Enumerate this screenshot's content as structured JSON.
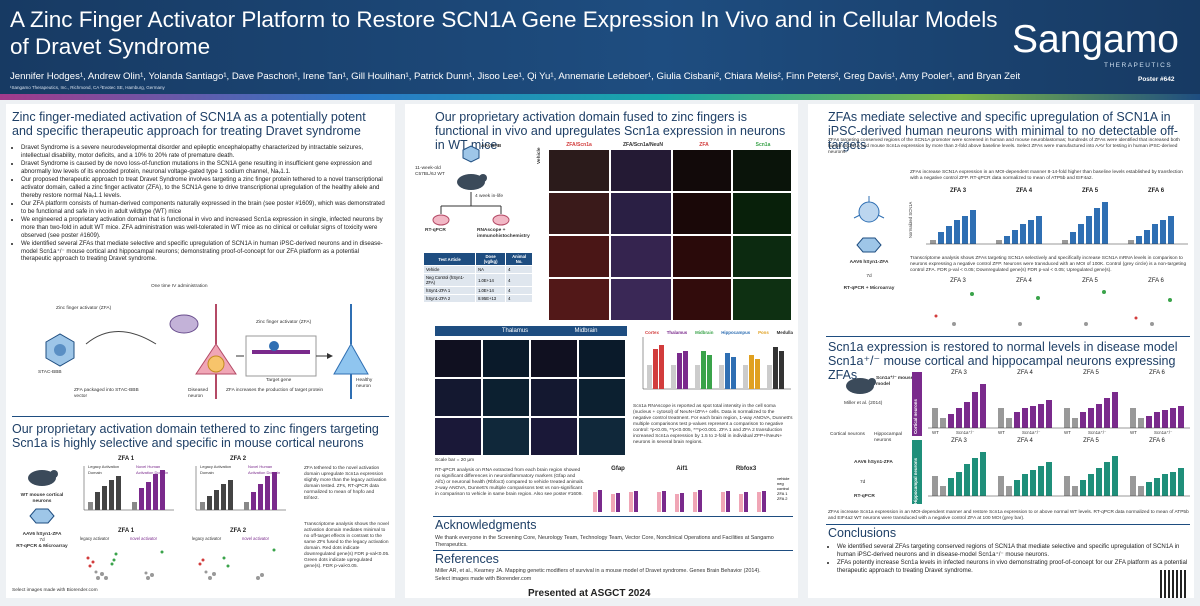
{
  "header": {
    "title": "A Zinc Finger Activator Platform to Restore SCN1A Gene Expression In Vivo and in Cellular Models of Dravet Syndrome",
    "authors": "Jennifer Hodges¹, Andrew Olin¹, Yolanda Santiago¹, Dave Paschon¹, Irene Tan¹, Gill Houlihan¹, Patrick Dunn¹, Jisoo Lee¹, Qi Yu¹, Annemarie Ledeboer¹, Giulia Cisbani², Chiara Melis², Finn Peters², Greg Davis¹, Amy Pooler¹, and Bryan Zeitler¹",
    "affiliations": "¹Sangamo Therapeutics, Inc., Richmond, CA   ²Evotec SE, Hamburg, Germany",
    "logo": "Sangamo",
    "logo_sub": "THERAPEUTICS",
    "poster_number": "Poster #642"
  },
  "col1": {
    "s1_title": "Zinc finger-mediated activation of SCN1A as a potentially potent and specific therapeutic approach for treating Dravet syndrome",
    "bullets": [
      "Dravet Syndrome is a severe neurodevelopmental disorder and epileptic encephalopathy characterized by intractable seizures, intellectual disability, motor deficits, and a 10% to 20% rate of premature death.",
      "Dravet Syndrome is caused by de novo loss-of-function mutations in the SCN1A gene resulting in insufficient gene expression and abnormally low levels of its encoded protein, neuronal voltage-gated type 1 sodium channel, Naᵥ1.1.",
      "Our proposed therapeutic approach to treat Dravet Syndrome involves targeting a zinc finger protein tethered to a novel transcriptional activator domain, called a zinc finger activator (ZFA), to the SCN1A gene to drive transcriptional upregulation of the healthy allele and thereby restore normal Naᵥ1.1 levels.",
      "Our ZFA platform consists of human-derived components naturally expressed in the brain (see poster #1609), which was demonstrated to be functional and safe in vivo in adult wildtype (WT) mice",
      "We engineered a proprietary activation domain that is functional in vivo and increased Scn1a expression in single, infected neurons by more than two-fold in adult WT mice. ZFA administration was well-tolerated in WT mice as no clinical or cellular signs of toxicity were observed (see poster #1609).",
      "We identified several ZFAs that mediate selective and specific upregulation of SCN1A in human iPSC-derived neurons and in disease-model Scn1a⁺/⁻ mouse cortical and hippocampal neurons; demonstrating proof-of-concept for our ZFA platform as a potential therapeutic approach to treating Dravet syndrome."
    ],
    "diagram": {
      "one_time": "One time IV administration",
      "zf_activator": "Zinc finger activator (ZFA)",
      "stac": "STAC-BBB",
      "zfa_packaged": "ZFA packaged into STAC-BBB vector",
      "zfa_label": "Zinc finger activator (ZFA)",
      "target_gene": "Target gene",
      "zfa_increase": "ZFA increases the production of target protein",
      "diseased": "Diseased neuron",
      "healthy": "Healthy neuron"
    },
    "s2_title": "Our proprietary activation domain tethered to zinc fingers targeting Scn1a is highly selective and specific in mouse cortical neurons",
    "s2_flow": [
      "WT mouse cortical neurons",
      "AAV6 hSyn1-ZFA",
      "7d",
      "RT-qPCR & Microarray"
    ],
    "s2_charts": [
      {
        "title": "ZFA 1",
        "left": "Legacy Activation Domain",
        "right": "Novel Human Activation Domain"
      },
      {
        "title": "ZFA 2",
        "left": "Legacy Activation Domain",
        "right": "Novel Human Activation Domain"
      }
    ],
    "s2_ylabel": "Normalized Scn1a",
    "s2_text1": "ZFA tethered to the novel activation domain upregulate Scn1a expression slightly more than the legacy activation domain tested. ZFs, RT-qPCR data normalized to mean of hnpfo and Eif4e2.",
    "s2_text2": "Transcriptome analysis shows the novel activation domain mediates minimal to no off-target effects in contrast to the same ZFs fused to the legacy activation domain. Red dots indicate downregulated gene(s) FDR p-val<0.05. Green dots indicate upregulated gene(s). FDR p-val<0.05.",
    "s2_volcano": [
      {
        "title": "ZFA 1",
        "left": "legacy activator",
        "right": "novel activator"
      },
      {
        "title": "ZFA 2",
        "left": "legacy activator",
        "right": "novel activator"
      }
    ],
    "footnote": "Select images made with Biorender.com"
  },
  "col2": {
    "s1_title": "Our proprietary activation domain fused to zinc fingers is functional in vivo and upregulates Scn1a expression in neurons in WT mice",
    "flow": {
      "aav": "AAV.9HB",
      "mouse": "11-week-old C57BL/6J WT",
      "weeks": "4 week in-life",
      "rtqpcr": "RT-qPCR",
      "rnascope": "RNAscope + immunohistochemistry"
    },
    "table": {
      "headers": [
        "Test Article",
        "Dose (vg/kg)",
        "Animal No."
      ],
      "rows": [
        [
          "Vehicle",
          "NA",
          "4"
        ],
        [
          "Neg Control (hSyn1-ZFA)",
          "1.0E+14",
          "4"
        ],
        [
          "hSyn1-ZFA 1",
          "1.0E+14",
          "4"
        ],
        [
          "hSyn1-ZFA 2",
          "8.95E+13",
          "4"
        ]
      ]
    },
    "micro_headers": [
      "ZFA/Scn1a",
      "ZFA/Scn1a/NeuN",
      "ZFA",
      "Scn1a"
    ],
    "micro_rows": [
      "Vehicle",
      "Neg control",
      "ZFA 1",
      "ZFA 2"
    ],
    "regions": [
      "Thalamus",
      "Midbrain"
    ],
    "region_sub": [
      "ZFA/Scn1a",
      "NeuN",
      "ZFA",
      "Scn1a"
    ],
    "scale": "Scale bar = 20 µm",
    "bar_regions": [
      "Cortex",
      "Thalamus",
      "Midbrain",
      "Hippocampus",
      "Pons",
      "Medulla"
    ],
    "rna_text": "Scn1a RNAscope is reported as spot total intensity in the cell soma (nucleus + cytosol) of NeuN+/ZFA+ cells. Data is normalized to the negative control treatment. For each brain region, 1-way ANOVA, Dunnett's multiple comparisons test p-values represent a comparison to negative control: *p<0.05, **p<0.005, ***p<0.001. ZFA 1 and ZFA 2 transduction increased Scn1a expression by 1.5 to 2-fold in individual ZFP+/NeuN+ neurons in several brain regions.",
    "qpcr_text": "RT-qPCR analysis on RNA extracted from each brain region showed no significant differences in neuroinflammatory markers (Gfap and Aif1) or neuronal health (Rbfox3) compared to vehicle treated animals. 2-way ANOVA, Dunnett's multiple comparisons test vs non-significant in comparison to vehicle in same brain region. Also see poster #1609.",
    "qpcr_charts": [
      "Gfap",
      "Aif1",
      "Rbfox3"
    ],
    "qpcr_legend": [
      "vehicle",
      "neg control",
      "ZFA 1",
      "ZFA 2"
    ],
    "ack_title": "Acknowledgments",
    "ack_text": "We thank everyone in the Screening Core, Neurology Team, Technology Team, Vector Core, Nonclinical Operations and Facilities at Sangamo Therapeutics.",
    "ref_title": "References",
    "ref_text": "Miller AR, et al., Kearney JA. Mapping genetic modifiers of survival in a mouse model of Dravet syndrome. Genes Brain Behavior (2014).",
    "ref_note": "Select images made with Biorender.com"
  },
  "col3": {
    "s1_title": "ZFAs mediate selective and specific upregulation of SCN1A in iPSC-derived human neurons with minimal to no detectable off-targets",
    "s1_intro": "ZFAs targeting conserved regions of the SCN1A promoter were screened in human and mouse neuroblastomas; hundreds of ZFAs were identified that increased both human SCN1A and mouse Scn1a expression by more than 2-fold above baseline levels. Select ZFAs were manufactured into AAV for testing in human iPSC-derived neurons.",
    "s1_chart_caption": "ZFAs increase SCN1A expression in an MOI-dependent manner 8-14-fold higher than baseline levels established by transfection with a negative control ZFP. RT-qPCR data normalized to mean of ATP5b and EIF4a2.",
    "zfa_titles": [
      "ZFA 3",
      "ZFA 4",
      "ZFA 5",
      "ZFA 6"
    ],
    "ylabel": "Normalized SCN1A",
    "flow": [
      "iPSC-derived human neurons",
      "AAV6 hSyn1-ZFA",
      "7d",
      "RT-qPCR + Microarray"
    ],
    "s1_volcano_caption": "Transcriptome analysis shows ZFAs targeting SCN1A selectively and specifically increase SCN1A mRNA levels in comparison to neurons expressing a negative control ZFP. Neurons were transduced with an MOI of 100K. Control (grey circle) is a non-targeting control ZFA. FDR p-val < 0.05; Downregulated gene(s) FDR p-val < 0.05; Upregulated gene(s).",
    "s2_title": "Scn1a expression is restored to normal levels in disease model Scn1a⁺/⁻ mouse cortical and hippocampal neurons expressing ZFAs",
    "s2_flow": [
      "Scn1a⁺/⁻ mouse model",
      "Miller et al. (2014)",
      "Cortical neurons",
      "Hippocampal neurons",
      "AAV6 hSyn1-ZFA",
      "7d",
      "RT-qPCR"
    ],
    "row_labels": [
      "Cortical neurons",
      "Hippocampal neurons"
    ],
    "x_groups": [
      "WT",
      "Scn1a⁺/⁻"
    ],
    "s2_caption": "ZFAs increase Scn1a expression in an MOI-dependent manner and restore Scn1a expression to or above normal WT levels. RT-qPCR data normalized to mean of ATP5b and EIF4a2 WT neurons were transduced with a negative control ZFA at 100 MOI (grey bar).",
    "concl_title": "Conclusions",
    "conclusions": [
      "We identified several ZFAs targeting conserved regions of SCN1A that mediate selective and specific upregulation of SCN1A in human iPSC-derived neurons and in disease-model Scn1a⁺/⁻ mouse neurons.",
      "ZFAs potently increase Scn1a levels in infected neurons in vivo demonstrating proof-of-concept for our ZFA platform as a potential therapeutic approach to treating Dravet syndrome."
    ]
  },
  "footer": {
    "presented": "Presented at ASGCT 2024"
  },
  "colors": {
    "navy": "#1e3f66",
    "header": "#1e4d80",
    "purple": "#7a2a8c",
    "teal": "#1f8f7a",
    "blue": "#2f6fb3"
  }
}
